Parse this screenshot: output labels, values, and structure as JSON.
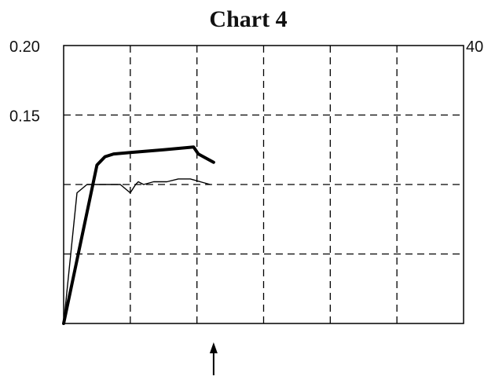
{
  "chart_data": {
    "type": "line",
    "title": "Chart 4",
    "xlabel": "",
    "ylabel": "",
    "xlim": [
      0,
      6
    ],
    "ylim": [
      0,
      0.2
    ],
    "y_right_lim": [
      0,
      40
    ],
    "grid": true,
    "legend": "none",
    "left_ticks": [
      {
        "value": 0.2,
        "label": "0.20"
      },
      {
        "value": 0.15,
        "label": "0.15"
      }
    ],
    "right_ticks": [
      {
        "value": 40,
        "label": "40"
      }
    ],
    "x_grid_values": [
      1,
      2,
      3,
      4,
      5
    ],
    "y_grid_values": [
      0.05,
      0.1,
      0.15
    ],
    "marker_arrow_x": 2.25,
    "series": [
      {
        "style": "thick",
        "color": "#000000",
        "points": [
          [
            0,
            0
          ],
          [
            0.5,
            0.114
          ],
          [
            0.62,
            0.12
          ],
          [
            0.75,
            0.122
          ],
          [
            1.0,
            0.123
          ],
          [
            1.5,
            0.125
          ],
          [
            1.95,
            0.127
          ],
          [
            2.02,
            0.122
          ],
          [
            2.25,
            0.116
          ]
        ]
      },
      {
        "style": "thin",
        "color": "#000000",
        "points": [
          [
            0,
            0
          ],
          [
            0.2,
            0.094
          ],
          [
            0.35,
            0.1
          ],
          [
            0.6,
            0.1
          ],
          [
            0.85,
            0.1
          ],
          [
            0.95,
            0.096
          ],
          [
            1.0,
            0.094
          ],
          [
            1.08,
            0.1
          ],
          [
            1.12,
            0.102
          ],
          [
            1.2,
            0.1
          ],
          [
            1.35,
            0.102
          ],
          [
            1.55,
            0.102
          ],
          [
            1.72,
            0.104
          ],
          [
            1.9,
            0.104
          ],
          [
            2.05,
            0.102
          ],
          [
            2.2,
            0.1
          ]
        ]
      }
    ]
  }
}
